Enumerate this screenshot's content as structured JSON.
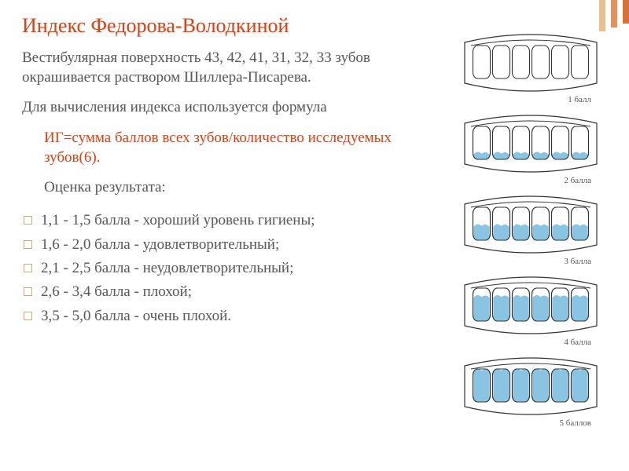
{
  "title": "Индекс Федорова-Володкиной",
  "para1": "Вестибулярная поверхность 43, 42, 41, 31, 32, 33 зубов окрашивается раствором Шиллера-Писарева.",
  "para2": "Для вычисления индекса используется формула",
  "formula": "ИГ=сумма баллов всех зубов/количество исследуемых зубов(6).",
  "eval_label": "Оценка результата:",
  "scale": [
    "1,1 - 1,5 балла - хороший уровень гигиены;",
    "1,6 - 2,0 балла - удовлетворительный;",
    "2,1 - 2,5 балла - неудовлетворительный;",
    "2,6 - 3,4 балла - плохой;",
    "3,5 - 5,0 балла - очень плохой."
  ],
  "illustrations": [
    {
      "caption": "1 балл",
      "stain_level": 0
    },
    {
      "caption": "2 балла",
      "stain_level": 1
    },
    {
      "caption": "3 балла",
      "stain_level": 2
    },
    {
      "caption": "4 балла",
      "stain_level": 3
    },
    {
      "caption": "5 баллов",
      "stain_level": 4
    }
  ],
  "colors": {
    "accent": "#d14719",
    "text": "#5a5a5a",
    "stain": "#7fbfe0",
    "tooth_fill": "#ffffff",
    "tooth_stroke": "#333333"
  }
}
